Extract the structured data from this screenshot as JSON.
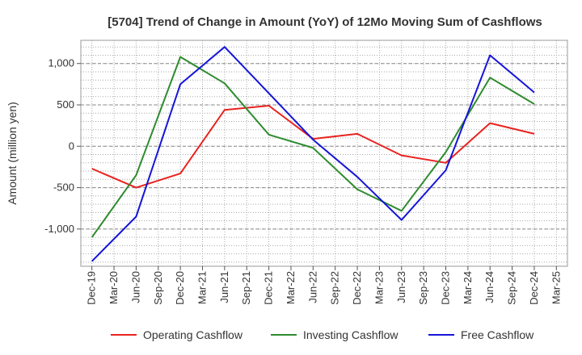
{
  "chart_data": {
    "type": "line",
    "title": "[5704]  Trend of Change in Amount (YoY) of 12Mo Moving Sum of Cashflows",
    "xlabel": "",
    "ylabel": "Amount (million yen)",
    "ylim": [
      -1450,
      1280
    ],
    "yticks": [
      -1000,
      -500,
      0,
      500,
      1000
    ],
    "ytick_labels": [
      "-1,000",
      "-500",
      "0",
      "500",
      "1,000"
    ],
    "categories": [
      "Dec-19",
      "Mar-20",
      "Jun-20",
      "Sep-20",
      "Dec-20",
      "Mar-21",
      "Jun-21",
      "Sep-21",
      "Dec-21",
      "Mar-22",
      "Jun-22",
      "Sep-22",
      "Dec-22",
      "Mar-23",
      "Jun-23",
      "Sep-23",
      "Dec-23",
      "Mar-24",
      "Jun-24",
      "Sep-24",
      "Dec-24",
      "Mar-25"
    ],
    "grid": true,
    "legend_position": "bottom",
    "series": [
      {
        "name": "Operating Cashflow",
        "color": "#e8231f",
        "x": [
          "Dec-19",
          "Jun-20",
          "Dec-20",
          "Jun-21",
          "Dec-21",
          "Jun-22",
          "Dec-22",
          "Jun-23",
          "Dec-23",
          "Jun-24",
          "Dec-24"
        ],
        "values": [
          -270,
          -500,
          -330,
          440,
          490,
          90,
          150,
          -110,
          -200,
          280,
          150
        ]
      },
      {
        "name": "Investing Cashflow",
        "color": "#2e8b2e",
        "x": [
          "Dec-19",
          "Jun-20",
          "Dec-20",
          "Jun-21",
          "Dec-21",
          "Jun-22",
          "Dec-22",
          "Jun-23",
          "Dec-23",
          "Jun-24",
          "Dec-24"
        ],
        "values": [
          -1100,
          -350,
          1080,
          760,
          140,
          -20,
          -520,
          -780,
          -70,
          830,
          510
        ]
      },
      {
        "name": "Free Cashflow",
        "color": "#1515d8",
        "x": [
          "Dec-19",
          "Jun-20",
          "Dec-20",
          "Jun-21",
          "Dec-21",
          "Jun-22",
          "Dec-22",
          "Jun-23",
          "Dec-23",
          "Jun-24",
          "Dec-24"
        ],
        "values": [
          -1390,
          -850,
          750,
          1200,
          640,
          80,
          -370,
          -890,
          -290,
          1100,
          650
        ]
      }
    ]
  }
}
